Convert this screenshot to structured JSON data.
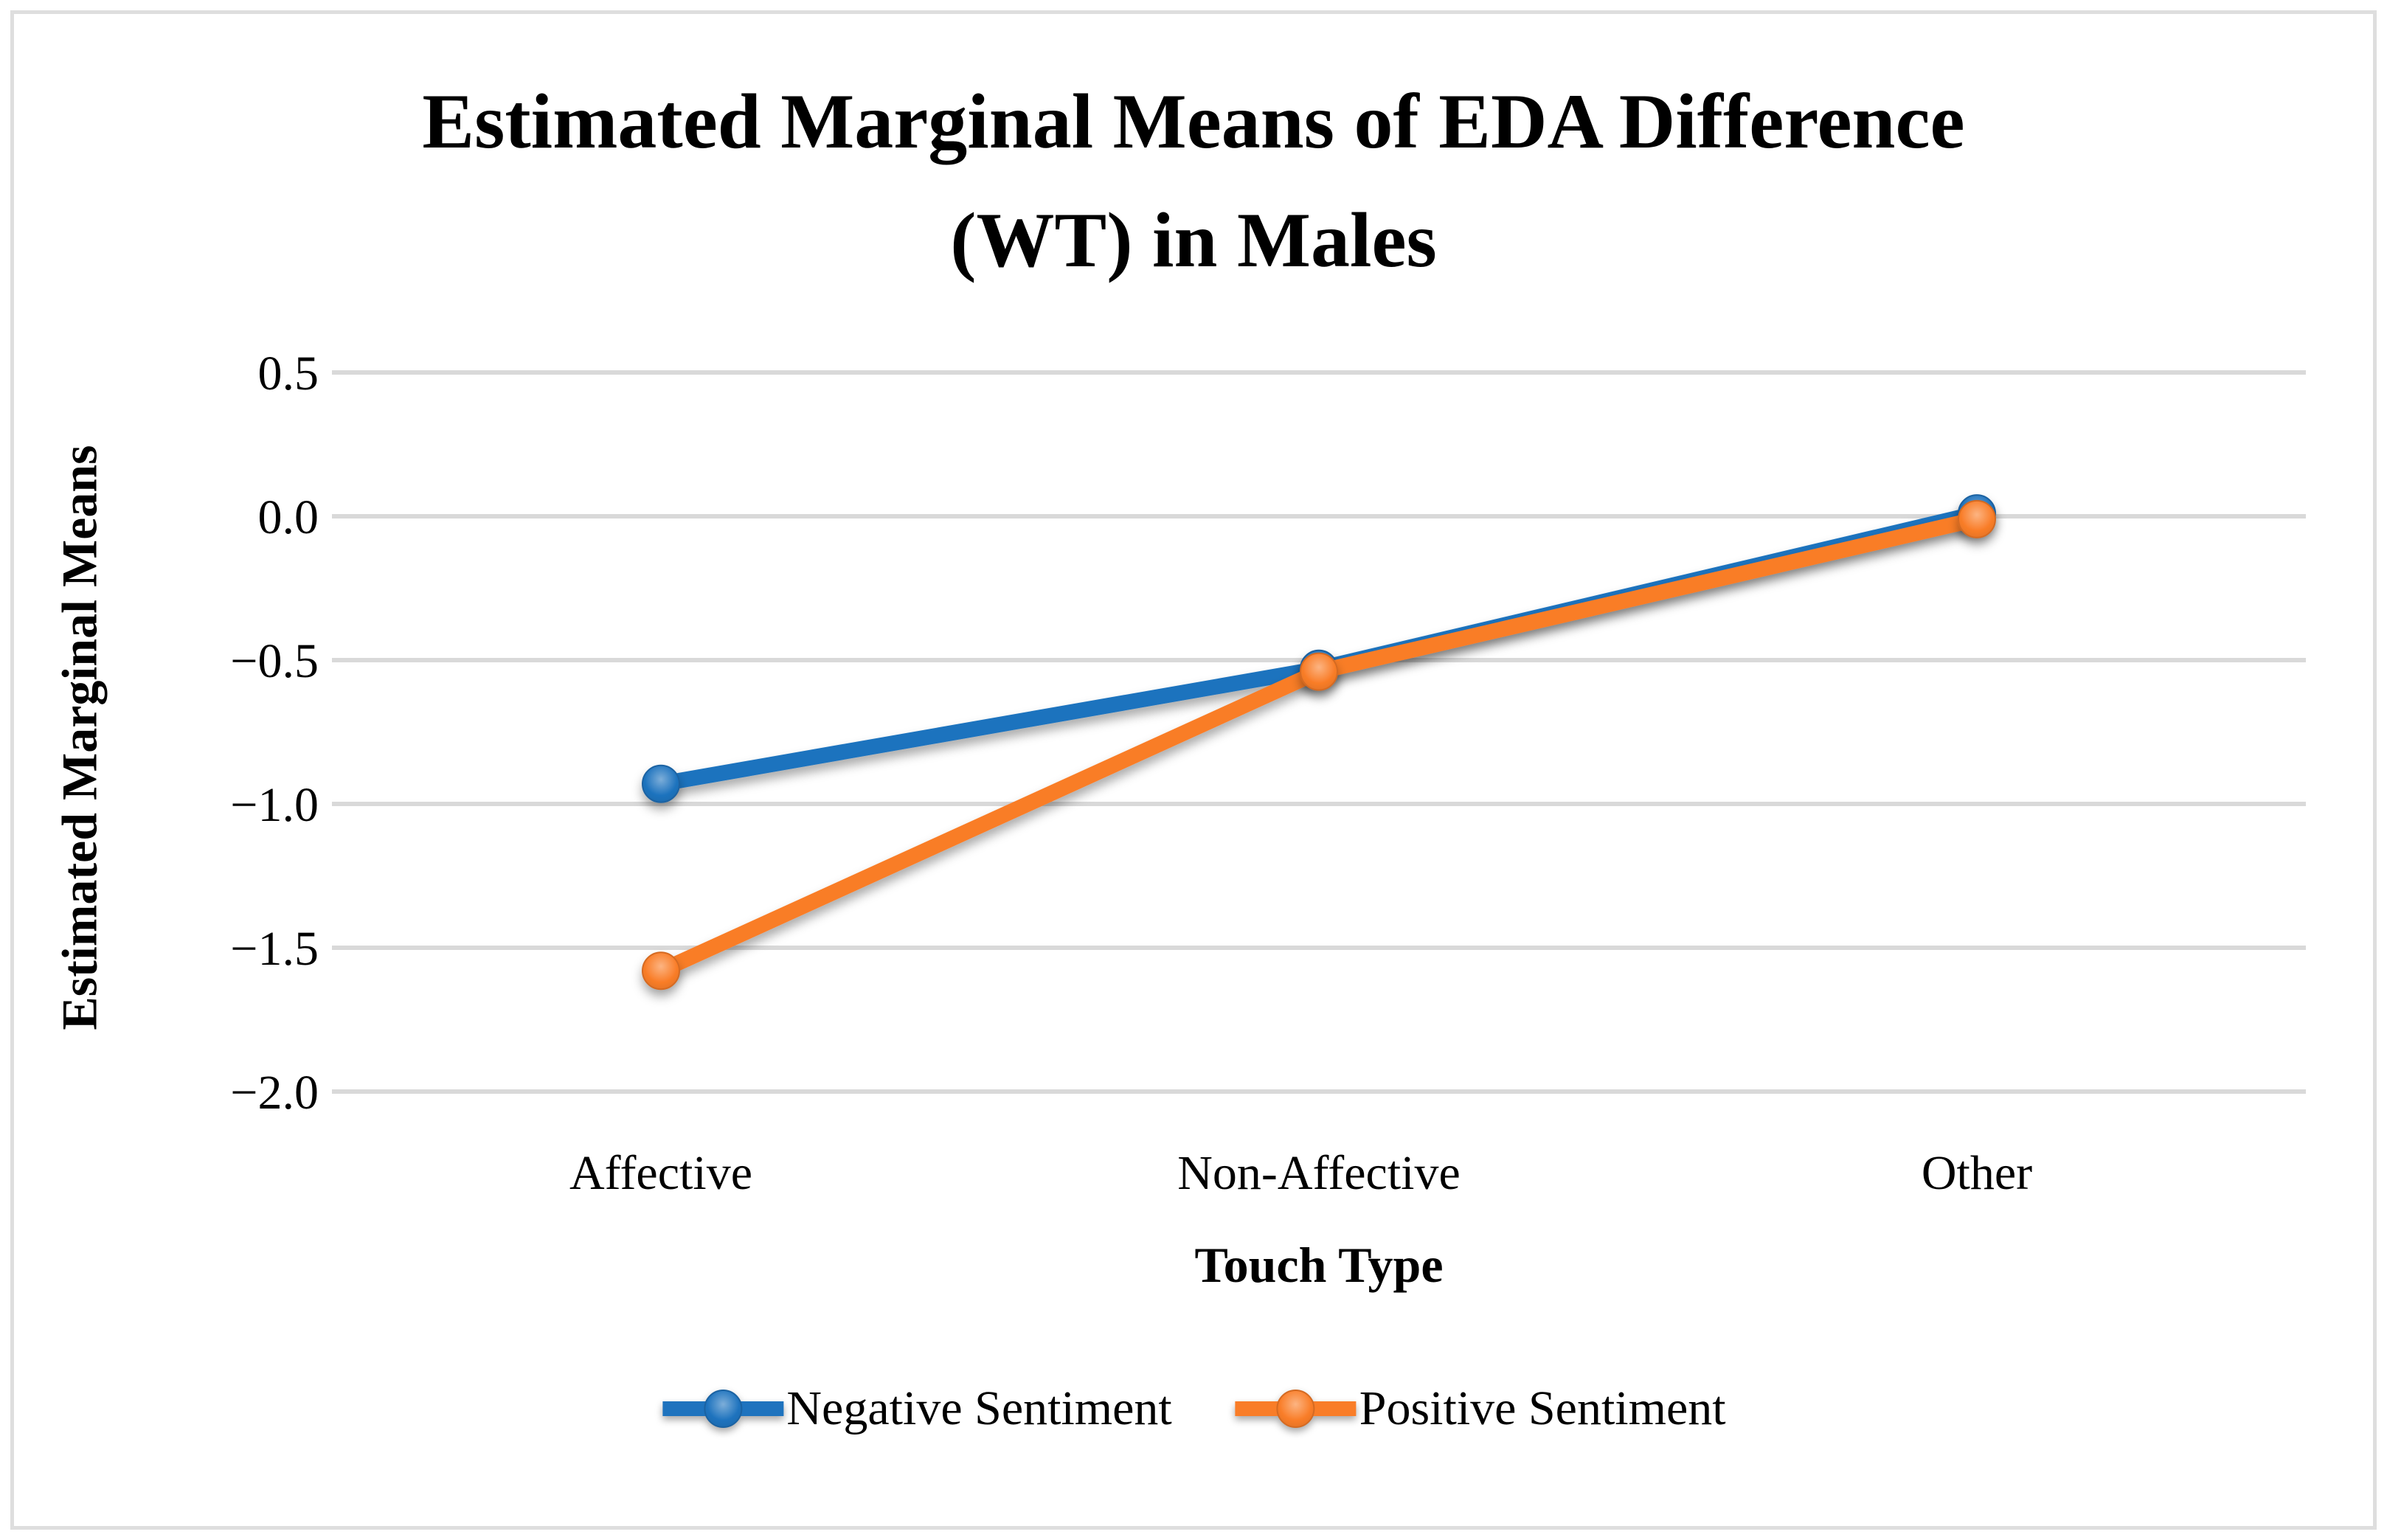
{
  "title": {
    "line1": "Estimated Marginal Means of EDA Difference",
    "line2": "(WT) in Males"
  },
  "axes": {
    "y_title": "Estimated Marginal Means",
    "x_title": "Touch Type"
  },
  "legend": {
    "position": "bottom",
    "items": [
      {
        "label": "Negative Sentiment",
        "color": "#1e73be"
      },
      {
        "label": "Positive Sentiment",
        "color": "#f97d28"
      }
    ]
  },
  "chart_data": {
    "type": "line",
    "title": "Estimated Marginal Means of EDA Difference (WT) in Males",
    "xlabel": "Touch Type",
    "ylabel": "Estimated Marginal Means",
    "categories": [
      "Affective",
      "Non-Affective",
      "Other"
    ],
    "series": [
      {
        "name": "Negative Sentiment",
        "color": "#1e73be",
        "values": [
          -0.93,
          -0.53,
          0.01
        ]
      },
      {
        "name": "Positive Sentiment",
        "color": "#f97d28",
        "values": [
          -1.58,
          -0.54,
          -0.01
        ]
      }
    ],
    "ylim": [
      -2.0,
      0.5
    ],
    "ytick_step": 0.5,
    "ytick_labels": [
      "0.5",
      "0.0",
      "−0.5",
      "−1.0",
      "−1.5",
      "−2.0"
    ],
    "grid": "horizontal",
    "gridline_color": "#d9d9d9",
    "legend_position": "bottom"
  }
}
